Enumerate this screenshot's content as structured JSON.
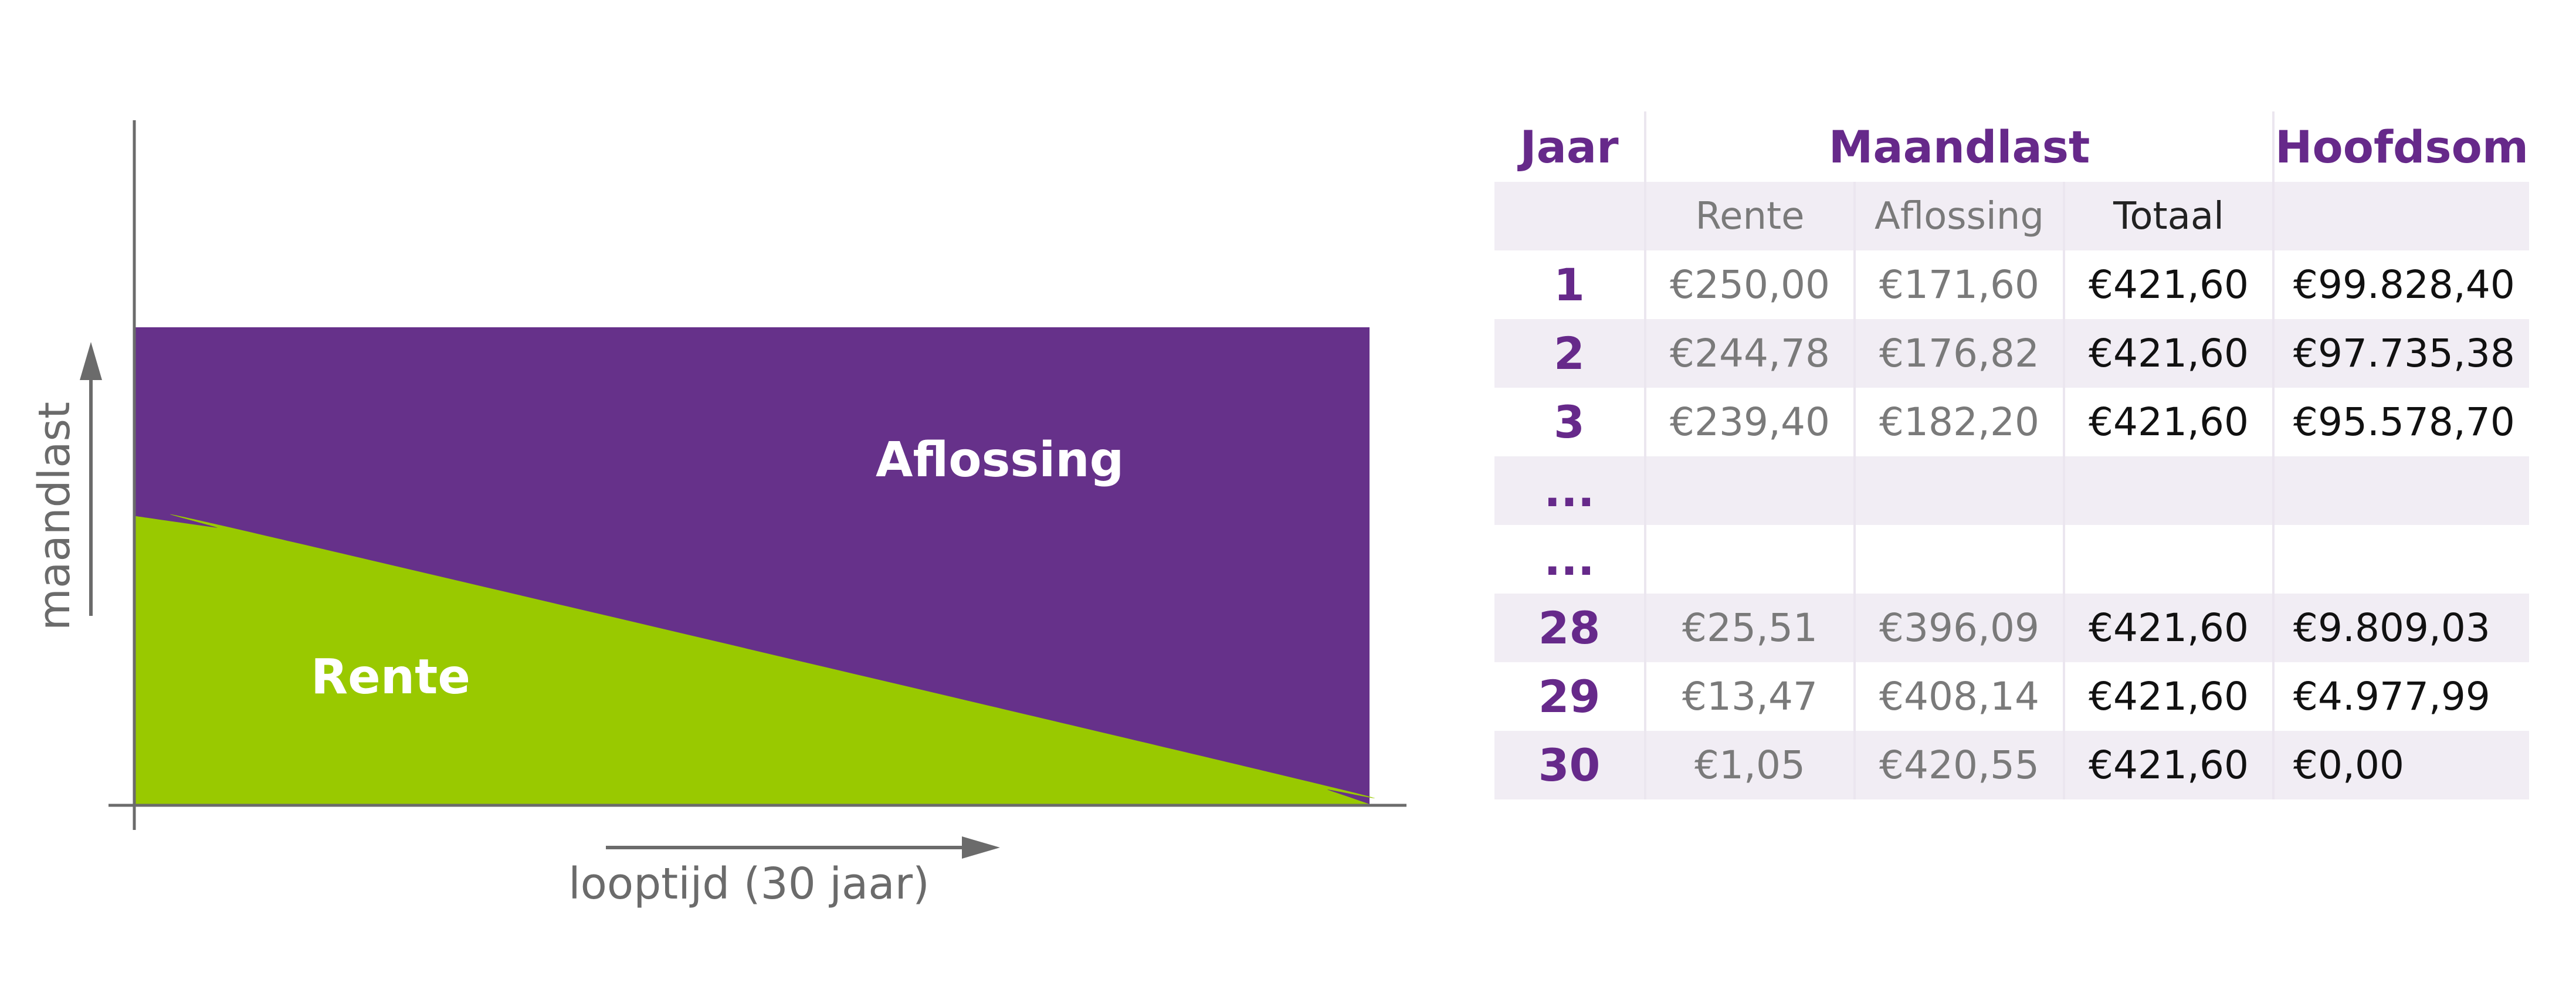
{
  "chart_data": {
    "type": "area",
    "x_axis_label": "looptijd (30 jaar)",
    "y_axis_label": "maandlast",
    "series": [
      {
        "name": "Rente",
        "color": "#99c900",
        "x": [
          1,
          2,
          3,
          28,
          29,
          30
        ],
        "values": [
          250.0,
          244.78,
          239.4,
          25.51,
          13.47,
          1.05
        ]
      },
      {
        "name": "Aflossing",
        "color": "#66318a",
        "x": [
          1,
          2,
          3,
          28,
          29,
          30
        ],
        "values": [
          171.6,
          176.82,
          182.2,
          396.09,
          408.14,
          420.55
        ]
      }
    ],
    "stacked": true,
    "total_monthly": 421.6,
    "x_range": [
      0,
      30
    ],
    "y_range": [
      0,
      421.6
    ],
    "grid": false,
    "legend": "inline labels"
  },
  "table": {
    "headers": {
      "year": "Jaar",
      "monthly": "Maandlast",
      "principal": "Hoofdsom"
    },
    "subheaders": [
      "Rente",
      "Aflossing",
      "Totaal"
    ],
    "rows": [
      {
        "year": "1",
        "rente": "€250,00",
        "aflossing": "€171,60",
        "totaal": "€421,60",
        "hoofdsom": "€99.828,40",
        "shaded": false
      },
      {
        "year": "2",
        "rente": "€244,78",
        "aflossing": "€176,82",
        "totaal": "€421,60",
        "hoofdsom": "€97.735,38",
        "shaded": true
      },
      {
        "year": "3",
        "rente": "€239,40",
        "aflossing": "€182,20",
        "totaal": "€421,60",
        "hoofdsom": "€95.578,70",
        "shaded": false
      },
      {
        "year": "...",
        "rente": "",
        "aflossing": "",
        "totaal": "",
        "hoofdsom": "",
        "shaded": true
      },
      {
        "year": "...",
        "rente": "",
        "aflossing": "",
        "totaal": "",
        "hoofdsom": "",
        "shaded": false
      },
      {
        "year": "28",
        "rente": "€25,51",
        "aflossing": "€396,09",
        "totaal": "€421,60",
        "hoofdsom": "€9.809,03",
        "shaded": true
      },
      {
        "year": "29",
        "rente": "€13,47",
        "aflossing": "€408,14",
        "totaal": "€421,60",
        "hoofdsom": "€4.977,99",
        "shaded": false
      },
      {
        "year": "30",
        "rente": "€1,05",
        "aflossing": "€420,55",
        "totaal": "€421,60",
        "hoofdsom": "€0,00",
        "shaded": true
      }
    ]
  },
  "colors": {
    "accent_purple": "#66298a",
    "aflossing_purple": "#66318a",
    "rente_green": "#99c900",
    "axis_gray": "#6b6b6b",
    "row_shade": "#f1edf4"
  }
}
